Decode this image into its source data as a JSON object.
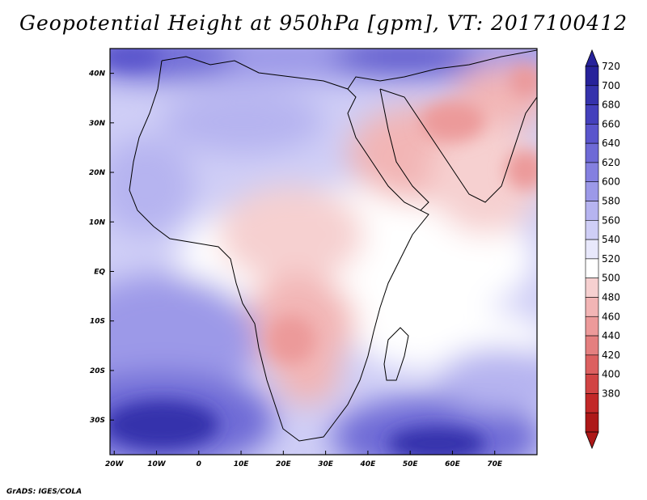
{
  "title": "Geopotential Height at 950hPa [gpm], VT: 2017100412",
  "credit": "GrADS: IGES/COLA",
  "lat_labels": [
    "40N",
    "30N",
    "20N",
    "10N",
    "EQ",
    "10S",
    "20S",
    "30S"
  ],
  "lon_labels": [
    "20W",
    "10W",
    "0",
    "10E",
    "20E",
    "30E",
    "40E",
    "50E",
    "60E",
    "70E"
  ],
  "lat_values": [
    40,
    30,
    20,
    10,
    0,
    -10,
    -20,
    -30
  ],
  "lon_values": [
    -20,
    -10,
    0,
    10,
    20,
    30,
    40,
    50,
    60,
    70
  ],
  "map_extent": {
    "lon_min": -21,
    "lon_max": 80,
    "lat_min": -37,
    "lat_max": 45
  },
  "colorbar": {
    "min": 380,
    "max": 720,
    "labels": [
      "720",
      "700",
      "680",
      "660",
      "640",
      "620",
      "600",
      "580",
      "560",
      "540",
      "520",
      "500",
      "480",
      "460",
      "440",
      "420",
      "400",
      "380"
    ],
    "colors": [
      "#27229a",
      "#3532ac",
      "#4440bc",
      "#5a55cc",
      "#6e6ad6",
      "#8480e0",
      "#9c99e8",
      "#b6b4f0",
      "#cfcef6",
      "#e8e8fb",
      "#ffffff",
      "#f6d0d0",
      "#f2b5b5",
      "#ec9a9a",
      "#e47f7f",
      "#dc6060",
      "#d14444",
      "#c22828",
      "#ad1818"
    ]
  }
}
